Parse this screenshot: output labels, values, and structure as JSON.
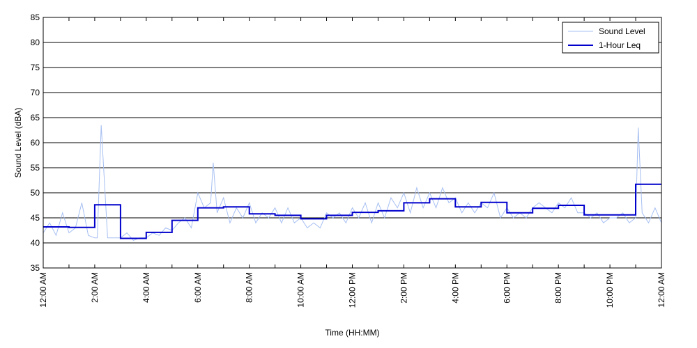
{
  "chart_data": {
    "type": "line",
    "xlabel": "Time (HH:MM)",
    "ylabel": "Sound Level (dBA)",
    "ylim": [
      35,
      85
    ],
    "xlim": [
      "12:00 AM",
      "12:00 AM"
    ],
    "yticks": [
      35,
      40,
      45,
      50,
      55,
      60,
      65,
      70,
      75,
      80,
      85
    ],
    "xtick_labels": [
      "12:00 AM",
      "",
      "2:00 AM",
      "",
      "4:00 AM",
      "",
      "6:00 AM",
      "",
      "8:00 AM",
      "",
      "10:00 AM",
      "",
      "12:00 PM",
      "",
      "2:00 PM",
      "",
      "4:00 PM",
      "",
      "6:00 PM",
      "",
      "8:00 PM",
      "",
      "10:00 PM",
      "",
      "12:00 AM"
    ],
    "grid": "horizontal",
    "legend_position": "top-right",
    "series": [
      {
        "name": "Sound Level",
        "color": "#a6bff2",
        "x_unit": "hours since 12:00 AM",
        "x": [
          0,
          0.25,
          0.5,
          0.75,
          1,
          1.25,
          1.5,
          1.75,
          2,
          2.1,
          2.25,
          2.5,
          2.75,
          3,
          3.25,
          3.5,
          3.75,
          4,
          4.25,
          4.5,
          4.75,
          5,
          5.25,
          5.5,
          5.75,
          6,
          6.25,
          6.5,
          6.6,
          6.75,
          7,
          7.25,
          7.5,
          7.75,
          8,
          8.25,
          8.5,
          8.75,
          9,
          9.25,
          9.5,
          9.75,
          10,
          10.25,
          10.5,
          10.75,
          11,
          11.25,
          11.5,
          11.75,
          12,
          12.25,
          12.5,
          12.75,
          13,
          13.25,
          13.5,
          13.75,
          14,
          14.25,
          14.5,
          14.75,
          15,
          15.25,
          15.5,
          15.75,
          16,
          16.25,
          16.5,
          16.75,
          17,
          17.25,
          17.5,
          17.75,
          18,
          18.25,
          18.5,
          18.75,
          19,
          19.25,
          19.5,
          19.75,
          20,
          20.25,
          20.5,
          20.75,
          21,
          21.25,
          21.5,
          21.75,
          22,
          22.25,
          22.5,
          22.75,
          23,
          23.1,
          23.25,
          23.5,
          23.75,
          24
        ],
        "y": [
          42,
          44,
          41.5,
          46,
          42,
          43,
          48,
          41.5,
          41,
          41,
          63.5,
          41,
          41,
          41,
          42,
          40.5,
          41,
          41,
          42,
          41.5,
          43,
          42.5,
          44,
          45,
          43,
          50,
          47,
          48,
          56,
          46,
          49,
          44,
          47,
          45,
          48,
          44,
          46,
          45,
          47,
          44,
          47,
          44,
          45,
          43,
          44,
          43,
          46,
          45,
          46,
          44,
          47,
          45,
          48,
          44,
          48,
          45,
          49,
          47,
          50,
          46,
          51,
          47,
          50,
          47,
          51,
          48,
          49,
          46,
          48,
          46,
          48,
          47,
          50,
          45,
          47,
          45,
          46,
          45,
          47,
          48,
          47,
          46,
          48,
          47,
          49,
          46,
          46,
          45,
          46,
          44,
          45,
          45,
          46,
          44,
          45,
          63,
          46,
          44,
          47,
          44
        ]
      },
      {
        "name": "1-Hour Leq",
        "color": "#0000cc",
        "step": "post",
        "x_unit": "hours since 12:00 AM",
        "x": [
          0,
          1,
          2,
          3,
          4,
          5,
          6,
          7,
          8,
          9,
          10,
          11,
          12,
          13,
          14,
          15,
          16,
          17,
          18,
          19,
          20,
          21,
          22,
          23,
          24
        ],
        "y": [
          43.2,
          43.1,
          47.6,
          40.9,
          42.1,
          44.5,
          47.0,
          47.2,
          45.8,
          45.5,
          44.8,
          45.5,
          46.1,
          46.4,
          48.0,
          48.8,
          47.2,
          48.1,
          46.0,
          46.9,
          47.5,
          45.6,
          45.6,
          51.7,
          51.7
        ]
      }
    ]
  }
}
